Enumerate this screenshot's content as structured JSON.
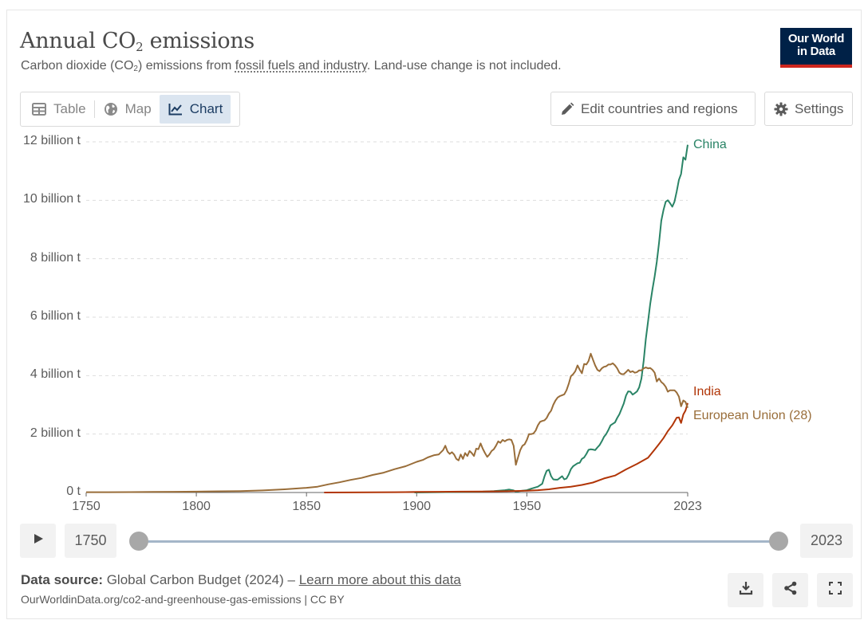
{
  "header": {
    "title_main": "Annual CO",
    "title_sub": "2",
    "title_rest": " emissions",
    "subtitle_pre": "Carbon dioxide (CO",
    "subtitle_sub": "2",
    "subtitle_mid": ") emissions from ",
    "subtitle_link": "fossil fuels and industry",
    "subtitle_post": ". Land-use change is not included.",
    "logo_line1": "Our World",
    "logo_line2": "in Data"
  },
  "tabs": [
    {
      "label": "Table",
      "icon": "table-icon"
    },
    {
      "label": "Map",
      "icon": "globe-icon"
    },
    {
      "label": "Chart",
      "icon": "line-chart-icon",
      "active": true
    }
  ],
  "toolbar": {
    "edit_label": "Edit countries and regions",
    "settings_label": "Settings"
  },
  "timeline": {
    "start_year": "1750",
    "end_year": "2023",
    "range_start_fraction": 0,
    "range_end_fraction": 1
  },
  "footer": {
    "source_label": "Data source:",
    "source_text": " Global Carbon Budget (2024) – ",
    "learn_more": "Learn more about this data",
    "url": "OurWorldinData.org/co2-and-greenhouse-gas-emissions | CC BY"
  },
  "colors": {
    "china": "#2a8466",
    "india": "#b13507",
    "eu": "#996d39",
    "grid": "#dddddd",
    "axis": "#666666"
  },
  "chart_data": {
    "type": "line",
    "ylim": [
      0,
      12000000000
    ],
    "xlim": [
      1750,
      2023
    ],
    "y_ticks": [
      {
        "value": 0,
        "label": "0 t"
      },
      {
        "value": 2000000000,
        "label": "2 billion t"
      },
      {
        "value": 4000000000,
        "label": "4 billion t"
      },
      {
        "value": 6000000000,
        "label": "6 billion t"
      },
      {
        "value": 8000000000,
        "label": "8 billion t"
      },
      {
        "value": 10000000000,
        "label": "10 billion t"
      },
      {
        "value": 12000000000,
        "label": "12 billion t"
      }
    ],
    "x_ticks": [
      {
        "value": 1750,
        "label": "1750"
      },
      {
        "value": 1800,
        "label": "1800"
      },
      {
        "value": 1850,
        "label": "1850"
      },
      {
        "value": 1900,
        "label": "1900"
      },
      {
        "value": 1950,
        "label": "1950"
      },
      {
        "value": 2023,
        "label": "2023"
      }
    ],
    "grid": "horizontal dashed",
    "legend": "inline labels at line ends",
    "series": [
      {
        "name": "China",
        "color_key": "china",
        "points": [
          [
            1899,
            0
          ],
          [
            1910,
            0.01
          ],
          [
            1920,
            0.02
          ],
          [
            1930,
            0.03
          ],
          [
            1935,
            0.05
          ],
          [
            1940,
            0.08
          ],
          [
            1942,
            0.1
          ],
          [
            1944,
            0.07
          ],
          [
            1945,
            0.03
          ],
          [
            1946,
            0.04
          ],
          [
            1948,
            0.06
          ],
          [
            1950,
            0.08
          ],
          [
            1952,
            0.13
          ],
          [
            1955,
            0.2
          ],
          [
            1957,
            0.3
          ],
          [
            1958,
            0.55
          ],
          [
            1959,
            0.74
          ],
          [
            1960,
            0.78
          ],
          [
            1961,
            0.56
          ],
          [
            1962,
            0.45
          ],
          [
            1963,
            0.44
          ],
          [
            1964,
            0.44
          ],
          [
            1965,
            0.5
          ],
          [
            1966,
            0.56
          ],
          [
            1967,
            0.45
          ],
          [
            1968,
            0.48
          ],
          [
            1969,
            0.62
          ],
          [
            1970,
            0.8
          ],
          [
            1971,
            0.9
          ],
          [
            1972,
            0.95
          ],
          [
            1973,
            1.0
          ],
          [
            1974,
            1.02
          ],
          [
            1975,
            1.15
          ],
          [
            1976,
            1.2
          ],
          [
            1977,
            1.32
          ],
          [
            1978,
            1.46
          ],
          [
            1979,
            1.48
          ],
          [
            1980,
            1.47
          ],
          [
            1981,
            1.45
          ],
          [
            1982,
            1.54
          ],
          [
            1983,
            1.62
          ],
          [
            1984,
            1.75
          ],
          [
            1985,
            1.9
          ],
          [
            1986,
            2.0
          ],
          [
            1987,
            2.14
          ],
          [
            1988,
            2.3
          ],
          [
            1989,
            2.35
          ],
          [
            1990,
            2.4
          ],
          [
            1991,
            2.55
          ],
          [
            1992,
            2.68
          ],
          [
            1993,
            2.86
          ],
          [
            1994,
            3.05
          ],
          [
            1995,
            3.32
          ],
          [
            1996,
            3.46
          ],
          [
            1997,
            3.45
          ],
          [
            1998,
            3.35
          ],
          [
            1999,
            3.4
          ],
          [
            2000,
            3.46
          ],
          [
            2001,
            3.6
          ],
          [
            2002,
            3.9
          ],
          [
            2003,
            4.5
          ],
          [
            2004,
            5.25
          ],
          [
            2005,
            5.85
          ],
          [
            2006,
            6.45
          ],
          [
            2007,
            6.95
          ],
          [
            2008,
            7.4
          ],
          [
            2009,
            7.9
          ],
          [
            2010,
            8.55
          ],
          [
            2011,
            9.3
          ],
          [
            2012,
            9.66
          ],
          [
            2013,
            9.95
          ],
          [
            2014,
            10.0
          ],
          [
            2015,
            9.9
          ],
          [
            2016,
            9.78
          ],
          [
            2017,
            9.95
          ],
          [
            2018,
            10.3
          ],
          [
            2019,
            10.7
          ],
          [
            2020,
            10.9
          ],
          [
            2021,
            11.47
          ],
          [
            2022,
            11.39
          ],
          [
            2023,
            11.9
          ]
        ]
      },
      {
        "name": "India",
        "color_key": "india",
        "points": [
          [
            1858,
            0
          ],
          [
            1870,
            0.002
          ],
          [
            1880,
            0.005
          ],
          [
            1890,
            0.01
          ],
          [
            1900,
            0.018
          ],
          [
            1910,
            0.025
          ],
          [
            1920,
            0.03
          ],
          [
            1930,
            0.035
          ],
          [
            1940,
            0.045
          ],
          [
            1950,
            0.06
          ],
          [
            1955,
            0.08
          ],
          [
            1960,
            0.11
          ],
          [
            1965,
            0.16
          ],
          [
            1970,
            0.2
          ],
          [
            1975,
            0.26
          ],
          [
            1980,
            0.34
          ],
          [
            1985,
            0.48
          ],
          [
            1990,
            0.58
          ],
          [
            1995,
            0.79
          ],
          [
            2000,
            0.98
          ],
          [
            2005,
            1.19
          ],
          [
            2008,
            1.47
          ],
          [
            2010,
            1.66
          ],
          [
            2012,
            1.86
          ],
          [
            2014,
            2.1
          ],
          [
            2016,
            2.3
          ],
          [
            2018,
            2.56
          ],
          [
            2019,
            2.57
          ],
          [
            2020,
            2.38
          ],
          [
            2021,
            2.67
          ],
          [
            2022,
            2.8
          ],
          [
            2023,
            3.06
          ]
        ]
      },
      {
        "name": "European Union (28)",
        "color_key": "eu",
        "points": [
          [
            1750,
            0.01
          ],
          [
            1760,
            0.012
          ],
          [
            1770,
            0.015
          ],
          [
            1780,
            0.02
          ],
          [
            1790,
            0.025
          ],
          [
            1800,
            0.03
          ],
          [
            1810,
            0.04
          ],
          [
            1820,
            0.05
          ],
          [
            1830,
            0.07
          ],
          [
            1840,
            0.11
          ],
          [
            1850,
            0.16
          ],
          [
            1855,
            0.2
          ],
          [
            1860,
            0.28
          ],
          [
            1865,
            0.35
          ],
          [
            1870,
            0.43
          ],
          [
            1875,
            0.5
          ],
          [
            1880,
            0.6
          ],
          [
            1885,
            0.68
          ],
          [
            1890,
            0.8
          ],
          [
            1895,
            0.9
          ],
          [
            1900,
            1.05
          ],
          [
            1903,
            1.12
          ],
          [
            1905,
            1.2
          ],
          [
            1908,
            1.28
          ],
          [
            1910,
            1.3
          ],
          [
            1912,
            1.45
          ],
          [
            1913,
            1.6
          ],
          [
            1914,
            1.4
          ],
          [
            1915,
            1.32
          ],
          [
            1916,
            1.38
          ],
          [
            1917,
            1.3
          ],
          [
            1918,
            1.15
          ],
          [
            1919,
            1.1
          ],
          [
            1920,
            1.3
          ],
          [
            1921,
            1.15
          ],
          [
            1922,
            1.35
          ],
          [
            1923,
            1.25
          ],
          [
            1924,
            1.42
          ],
          [
            1925,
            1.35
          ],
          [
            1926,
            1.25
          ],
          [
            1927,
            1.5
          ],
          [
            1928,
            1.48
          ],
          [
            1929,
            1.68
          ],
          [
            1930,
            1.5
          ],
          [
            1931,
            1.35
          ],
          [
            1932,
            1.22
          ],
          [
            1933,
            1.3
          ],
          [
            1934,
            1.42
          ],
          [
            1935,
            1.48
          ],
          [
            1936,
            1.6
          ],
          [
            1937,
            1.75
          ],
          [
            1938,
            1.7
          ],
          [
            1939,
            1.8
          ],
          [
            1940,
            1.75
          ],
          [
            1941,
            1.8
          ],
          [
            1942,
            1.82
          ],
          [
            1943,
            1.8
          ],
          [
            1944,
            1.6
          ],
          [
            1945,
            0.95
          ],
          [
            1946,
            1.2
          ],
          [
            1947,
            1.45
          ],
          [
            1948,
            1.6
          ],
          [
            1949,
            1.65
          ],
          [
            1950,
            1.8
          ],
          [
            1951,
            2.0
          ],
          [
            1952,
            2.0
          ],
          [
            1953,
            2.02
          ],
          [
            1954,
            2.12
          ],
          [
            1955,
            2.3
          ],
          [
            1956,
            2.42
          ],
          [
            1957,
            2.45
          ],
          [
            1958,
            2.47
          ],
          [
            1959,
            2.55
          ],
          [
            1960,
            2.7
          ],
          [
            1961,
            2.8
          ],
          [
            1962,
            3.0
          ],
          [
            1963,
            3.15
          ],
          [
            1964,
            3.25
          ],
          [
            1965,
            3.3
          ],
          [
            1966,
            3.33
          ],
          [
            1967,
            3.36
          ],
          [
            1968,
            3.5
          ],
          [
            1969,
            3.72
          ],
          [
            1970,
            3.98
          ],
          [
            1971,
            4.05
          ],
          [
            1972,
            4.15
          ],
          [
            1973,
            4.35
          ],
          [
            1974,
            4.2
          ],
          [
            1975,
            4.08
          ],
          [
            1976,
            4.4
          ],
          [
            1977,
            4.38
          ],
          [
            1978,
            4.5
          ],
          [
            1979,
            4.75
          ],
          [
            1980,
            4.55
          ],
          [
            1981,
            4.35
          ],
          [
            1982,
            4.2
          ],
          [
            1983,
            4.15
          ],
          [
            1984,
            4.25
          ],
          [
            1985,
            4.3
          ],
          [
            1986,
            4.32
          ],
          [
            1987,
            4.38
          ],
          [
            1988,
            4.38
          ],
          [
            1989,
            4.42
          ],
          [
            1990,
            4.35
          ],
          [
            1991,
            4.25
          ],
          [
            1992,
            4.1
          ],
          [
            1993,
            4.05
          ],
          [
            1994,
            4.05
          ],
          [
            1995,
            4.12
          ],
          [
            1996,
            4.2
          ],
          [
            1997,
            4.12
          ],
          [
            1998,
            4.15
          ],
          [
            1999,
            4.1
          ],
          [
            2000,
            4.12
          ],
          [
            2001,
            4.18
          ],
          [
            2002,
            4.18
          ],
          [
            2003,
            4.25
          ],
          [
            2004,
            4.28
          ],
          [
            2005,
            4.25
          ],
          [
            2006,
            4.26
          ],
          [
            2007,
            4.2
          ],
          [
            2008,
            4.1
          ],
          [
            2009,
            3.8
          ],
          [
            2010,
            3.9
          ],
          [
            2011,
            3.78
          ],
          [
            2012,
            3.72
          ],
          [
            2013,
            3.62
          ],
          [
            2014,
            3.45
          ],
          [
            2015,
            3.5
          ],
          [
            2016,
            3.5
          ],
          [
            2017,
            3.5
          ],
          [
            2018,
            3.42
          ],
          [
            2019,
            3.28
          ],
          [
            2020,
            2.95
          ],
          [
            2021,
            3.15
          ],
          [
            2022,
            3.1
          ],
          [
            2023,
            2.9
          ]
        ]
      }
    ]
  }
}
